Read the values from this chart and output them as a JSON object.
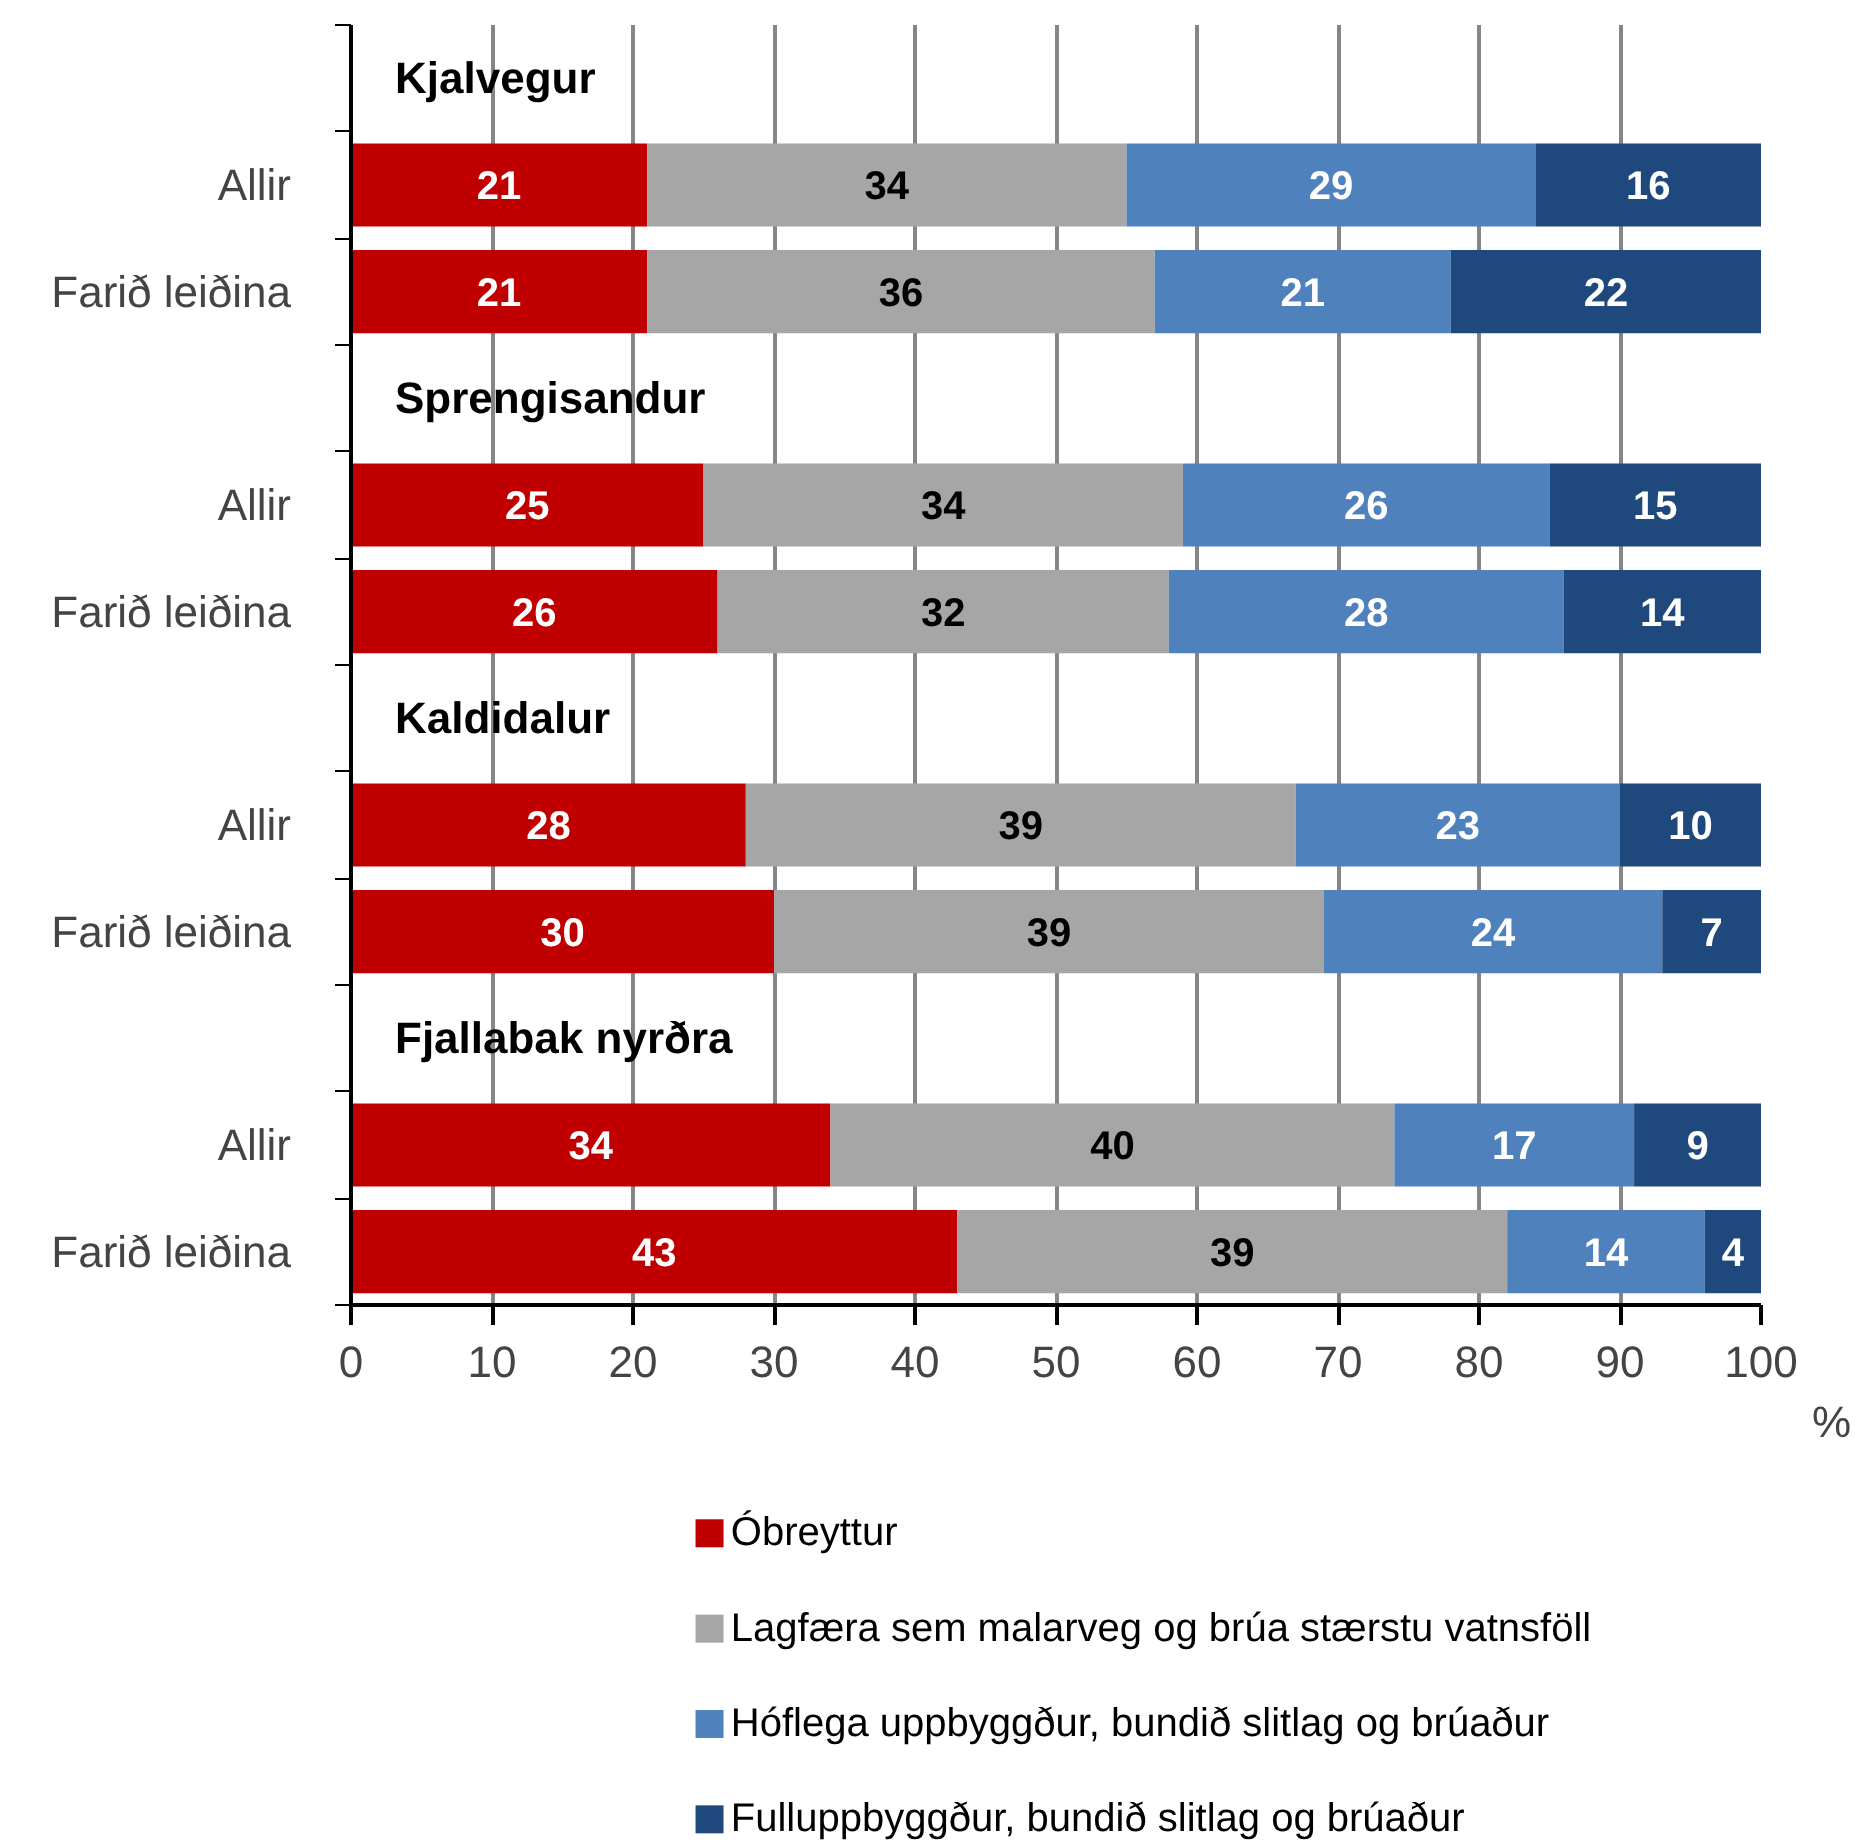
{
  "chart_data": {
    "type": "bar",
    "orientation": "horizontal",
    "stacked": true,
    "data_labels": true,
    "grid": "x",
    "legend": "bottom",
    "categories": [
      "Kjalvegur",
      "Allir",
      "Farið leiðina",
      "Sprengisandur",
      "Allir",
      "Farið leiðina",
      "Kaldidalur",
      "Allir",
      "Farið leiðina",
      "Fjallabak  nyrðra",
      "Allir",
      "Farið leiðina"
    ],
    "series": [
      {
        "name": "Óbreyttur",
        "color": "#c00000",
        "values": [
          null,
          21,
          21,
          null,
          25,
          26,
          null,
          28,
          30,
          null,
          34,
          43
        ]
      },
      {
        "name": "Lagfæra sem malarveg og brúa stærstu vatnsföll",
        "color": "#a6a6a6",
        "values": [
          null,
          34,
          36,
          null,
          34,
          32,
          null,
          39,
          39,
          null,
          40,
          39
        ]
      },
      {
        "name": "Hóflega uppbyggður, bundið slitlag og brúaður",
        "color": "#4f81bd",
        "values": [
          null,
          29,
          21,
          null,
          26,
          28,
          null,
          23,
          24,
          null,
          17,
          14
        ]
      },
      {
        "name": "Fulluppbyggður, bundið slitlag og brúaður",
        "color": "#1f497d",
        "values": [
          null,
          16,
          22,
          null,
          15,
          14,
          null,
          10,
          7,
          null,
          9,
          4
        ]
      }
    ],
    "xlim": [
      0,
      100
    ],
    "xticks": [
      0,
      10,
      20,
      30,
      40,
      50,
      60,
      70,
      80,
      90,
      100
    ],
    "annotations": [
      "%"
    ]
  }
}
